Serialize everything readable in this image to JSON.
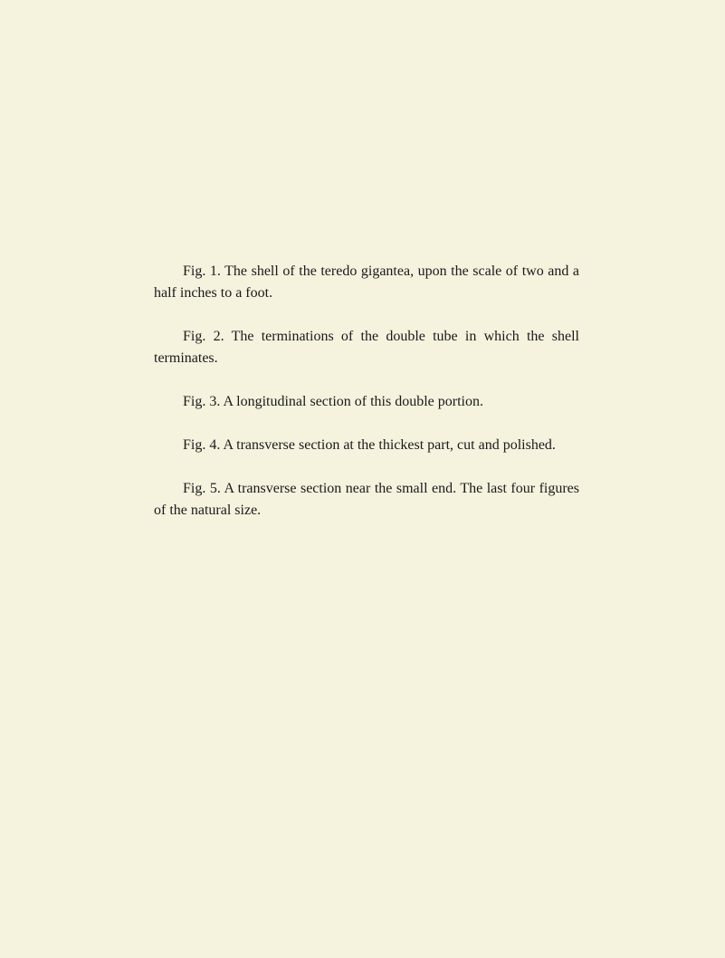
{
  "document": {
    "background_color": "#f5f2de",
    "text_color": "#1a1a1a",
    "font_family": "Georgia, serif",
    "font_size_pt": 12,
    "paragraphs": [
      "Fig. 1. The shell of the teredo gigantea, upon the scale of two and a half inches to a foot.",
      "Fig. 2. The terminations of the double tube in which the shell terminates.",
      "Fig. 3. A longitudinal section of this double portion.",
      "Fig. 4. A transverse section at the thickest part, cut and polished.",
      "Fig. 5. A transverse section near the small end.   The last four figures of the natural size."
    ]
  }
}
